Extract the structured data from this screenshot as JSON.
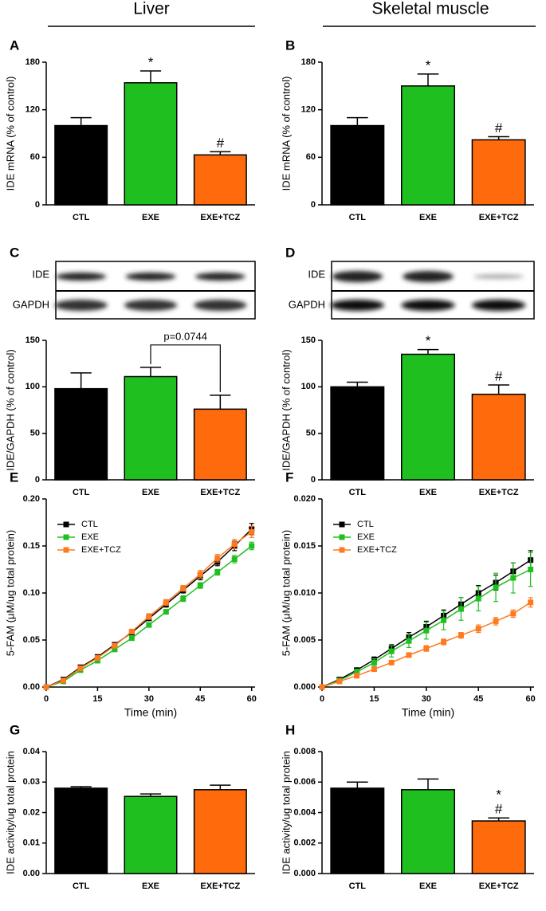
{
  "headers": [
    "Liver",
    "Skeletal muscle"
  ],
  "chart_data": [
    {
      "type": "bar",
      "panel": "A",
      "ylabel": "IDE mRNA (% of control)",
      "categories": [
        "CTL",
        "EXE",
        "EXE+TCZ"
      ],
      "values": [
        100,
        154,
        63
      ],
      "errors": [
        10,
        15,
        4
      ],
      "colors": [
        "#000000",
        "#1fbf1f",
        "#ff6a0d"
      ],
      "ylim": [
        0,
        180
      ],
      "yticks": [
        0,
        60,
        120,
        180
      ],
      "annotations": [
        [],
        [
          "*"
        ],
        [
          "#"
        ]
      ]
    },
    {
      "type": "bar",
      "panel": "B",
      "ylabel": "IDE mRNA (% of control)",
      "categories": [
        "CTL",
        "EXE",
        "EXE+TCZ"
      ],
      "values": [
        100,
        150,
        82
      ],
      "errors": [
        10,
        15,
        4
      ],
      "colors": [
        "#000000",
        "#1fbf1f",
        "#ff6a0d"
      ],
      "ylim": [
        0,
        180
      ],
      "yticks": [
        0,
        60,
        120,
        180
      ],
      "annotations": [
        [],
        [
          "*"
        ],
        [
          "#"
        ]
      ]
    },
    {
      "type": "bar",
      "panel": "C",
      "ylabel": "IDE/GAPDH (% of control)",
      "blot_labels": [
        "IDE",
        "GAPDH"
      ],
      "categories": [
        "CTL",
        "EXE",
        "EXE+TCZ"
      ],
      "values": [
        98,
        111,
        76
      ],
      "errors": [
        17,
        10,
        15
      ],
      "colors": [
        "#000000",
        "#1fbf1f",
        "#ff6a0d"
      ],
      "ylim": [
        0,
        150
      ],
      "yticks": [
        0,
        50,
        100,
        150
      ],
      "annotations": [
        [],
        [],
        []
      ],
      "comparison": "p=0.0744"
    },
    {
      "type": "bar",
      "panel": "D",
      "ylabel": "IDE/GAPDH (% of control)",
      "blot_labels": [
        "IDE",
        "GAPDH"
      ],
      "categories": [
        "CTL",
        "EXE",
        "EXE+TCZ"
      ],
      "values": [
        100,
        135,
        92
      ],
      "errors": [
        5,
        5,
        10
      ],
      "colors": [
        "#000000",
        "#1fbf1f",
        "#ff6a0d"
      ],
      "ylim": [
        0,
        150
      ],
      "yticks": [
        0,
        50,
        100,
        150
      ],
      "annotations": [
        [],
        [
          "*"
        ],
        [
          "#"
        ]
      ]
    },
    {
      "type": "line",
      "panel": "E",
      "ylabel": "5-FAM (μM/ug total protein)",
      "xlabel": "Time (min)",
      "x": [
        0,
        5,
        10,
        15,
        20,
        25,
        30,
        35,
        40,
        45,
        50,
        55,
        60
      ],
      "xlim": [
        0,
        61
      ],
      "xticks": [
        0,
        15,
        30,
        45,
        60
      ],
      "ylim": [
        0,
        0.2
      ],
      "yticks": [
        {
          "value": 0,
          "label": "0.00"
        },
        {
          "value": 0.05,
          "label": "0.05"
        },
        {
          "value": 0.1,
          "label": "0.10"
        },
        {
          "value": 0.15,
          "label": "0.15"
        },
        {
          "value": 0.2,
          "label": "0.20"
        }
      ],
      "series": [
        {
          "name": "CTL",
          "color": "#000000",
          "values": [
            0,
            0.008,
            0.021,
            0.032,
            0.045,
            0.058,
            0.073,
            0.088,
            0.103,
            0.118,
            0.133,
            0.15,
            0.168
          ],
          "errors": [
            0,
            0.001,
            0.001,
            0.002,
            0.002,
            0.002,
            0.002,
            0.003,
            0.003,
            0.004,
            0.004,
            0.005,
            0.006
          ]
        },
        {
          "name": "EXE",
          "color": "#1fbf1f",
          "values": [
            0,
            0.006,
            0.018,
            0.028,
            0.04,
            0.052,
            0.066,
            0.08,
            0.094,
            0.108,
            0.122,
            0.136,
            0.15
          ],
          "errors": [
            0,
            0.001,
            0.001,
            0.001,
            0.002,
            0.002,
            0.002,
            0.002,
            0.003,
            0.003,
            0.003,
            0.004,
            0.004
          ]
        },
        {
          "name": "EXE+TCZ",
          "color": "#ff7a1f",
          "values": [
            0,
            0.007,
            0.02,
            0.031,
            0.044,
            0.059,
            0.075,
            0.09,
            0.105,
            0.12,
            0.137,
            0.152,
            0.165
          ],
          "errors": [
            0,
            0.001,
            0.001,
            0.002,
            0.002,
            0.002,
            0.003,
            0.003,
            0.003,
            0.004,
            0.004,
            0.005,
            0.006
          ]
        }
      ]
    },
    {
      "type": "line",
      "panel": "F",
      "ylabel": "5-FAM (μM/ug total protein)",
      "xlabel": "Time (min)",
      "x": [
        0,
        5,
        10,
        15,
        20,
        25,
        30,
        35,
        40,
        45,
        50,
        55,
        60
      ],
      "xlim": [
        0,
        61
      ],
      "xticks": [
        0,
        15,
        30,
        45,
        60
      ],
      "ylim": [
        0,
        0.02
      ],
      "yticks": [
        {
          "value": 0,
          "label": "0.000"
        },
        {
          "value": 0.005,
          "label": "0.005"
        },
        {
          "value": 0.01,
          "label": "0.010"
        },
        {
          "value": 0.015,
          "label": "0.015"
        },
        {
          "value": 0.02,
          "label": "0.020"
        }
      ],
      "series": [
        {
          "name": "CTL",
          "color": "#000000",
          "values": [
            0,
            0.0008,
            0.0018,
            0.0029,
            0.0041,
            0.0053,
            0.0064,
            0.0076,
            0.0088,
            0.01,
            0.0111,
            0.0123,
            0.0135
          ],
          "errors": [
            0,
            0.0001,
            0.0002,
            0.0003,
            0.0004,
            0.0005,
            0.0006,
            0.0006,
            0.0007,
            0.0008,
            0.0008,
            0.0009,
            0.001
          ]
        },
        {
          "name": "EXE",
          "color": "#1fbf1f",
          "values": [
            0,
            0.0007,
            0.0016,
            0.0026,
            0.0038,
            0.0049,
            0.006,
            0.0071,
            0.0083,
            0.0094,
            0.0106,
            0.0116,
            0.0125
          ],
          "errors": [
            0,
            0.0002,
            0.0003,
            0.0004,
            0.0006,
            0.0007,
            0.0009,
            0.001,
            0.0012,
            0.0013,
            0.0015,
            0.0016,
            0.0018
          ]
        },
        {
          "name": "EXE+TCZ",
          "color": "#ff7a1f",
          "values": [
            0,
            0.0006,
            0.0012,
            0.0019,
            0.0026,
            0.0034,
            0.0041,
            0.0048,
            0.0055,
            0.0062,
            0.007,
            0.0078,
            0.009
          ],
          "errors": [
            0,
            0.0001,
            0.0001,
            0.0002,
            0.0002,
            0.0002,
            0.0003,
            0.0003,
            0.0003,
            0.0004,
            0.0004,
            0.0004,
            0.0005
          ]
        }
      ]
    },
    {
      "type": "bar",
      "panel": "G",
      "ylabel": "IDE activity/ug total protein",
      "categories": [
        "CTL",
        "EXE",
        "EXE+TCZ"
      ],
      "values": [
        0.028,
        0.0253,
        0.0275
      ],
      "errors": [
        0.0005,
        0.0008,
        0.0015
      ],
      "colors": [
        "#000000",
        "#1fbf1f",
        "#ff6a0d"
      ],
      "ylim": [
        0,
        0.04
      ],
      "yticks": [
        {
          "value": 0,
          "label": "0.00"
        },
        {
          "value": 0.01,
          "label": "0.01"
        },
        {
          "value": 0.02,
          "label": "0.02"
        },
        {
          "value": 0.03,
          "label": "0.03"
        },
        {
          "value": 0.04,
          "label": "0.04"
        }
      ],
      "annotations": [
        [],
        [],
        []
      ]
    },
    {
      "type": "bar",
      "panel": "H",
      "ylabel": "IDE activity/ug total protein",
      "categories": [
        "CTL",
        "EXE",
        "EXE+TCZ"
      ],
      "values": [
        0.0056,
        0.0055,
        0.00345
      ],
      "errors": [
        0.0004,
        0.0007,
        0.0002
      ],
      "colors": [
        "#000000",
        "#1fbf1f",
        "#ff6a0d"
      ],
      "ylim": [
        0,
        0.008
      ],
      "yticks": [
        {
          "value": 0,
          "label": "0.000"
        },
        {
          "value": 0.002,
          "label": "0.002"
        },
        {
          "value": 0.004,
          "label": "0.004"
        },
        {
          "value": 0.006,
          "label": "0.006"
        },
        {
          "value": 0.008,
          "label": "0.008"
        }
      ],
      "annotations": [
        [],
        [],
        [
          "#",
          "*"
        ]
      ]
    }
  ]
}
